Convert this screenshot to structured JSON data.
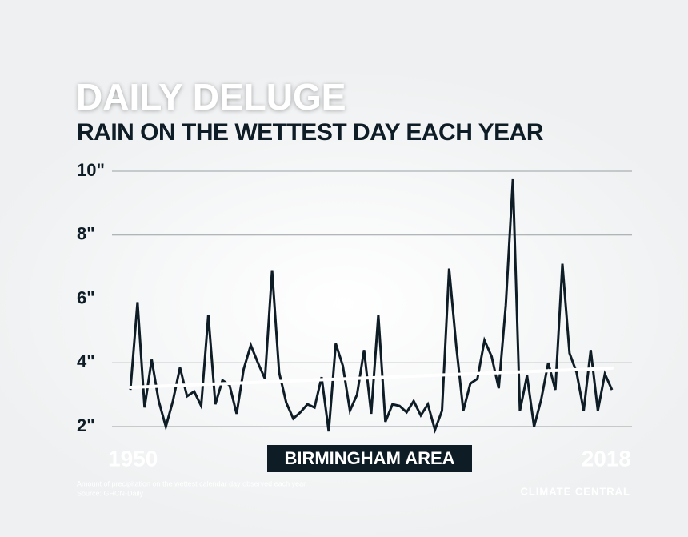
{
  "chart_data": {
    "type": "line",
    "title": "DAILY DELUGE",
    "subtitle": "RAIN ON THE WETTEST DAY EACH YEAR",
    "label": "BIRMINGHAM AREA",
    "footnote": [
      "Amount of precipitation on the wettest calendar day observed each year",
      "Source: GHCN-Daily"
    ],
    "logo": "CLIMATE CENTRAL",
    "x": [
      1950,
      1951,
      1952,
      1953,
      1954,
      1955,
      1956,
      1957,
      1958,
      1959,
      1960,
      1961,
      1962,
      1963,
      1964,
      1965,
      1966,
      1967,
      1968,
      1969,
      1970,
      1971,
      1972,
      1973,
      1974,
      1975,
      1976,
      1977,
      1978,
      1979,
      1980,
      1981,
      1982,
      1983,
      1984,
      1985,
      1986,
      1987,
      1988,
      1989,
      1990,
      1991,
      1992,
      1993,
      1994,
      1995,
      1996,
      1997,
      1998,
      1999,
      2000,
      2001,
      2002,
      2003,
      2004,
      2005,
      2006,
      2007,
      2008,
      2009,
      2010,
      2011,
      2012,
      2013,
      2014,
      2015,
      2016,
      2017,
      2018
    ],
    "series": [
      {
        "color": "#0e1c26",
        "values": [
          3.15,
          5.9,
          2.6,
          4.1,
          2.8,
          2.0,
          2.8,
          3.85,
          2.95,
          3.1,
          2.65,
          5.5,
          2.7,
          3.45,
          3.3,
          2.4,
          3.8,
          4.55,
          4.0,
          3.5,
          6.9,
          3.7,
          2.75,
          2.25,
          2.45,
          2.7,
          2.6,
          3.55,
          1.85,
          4.6,
          3.9,
          2.5,
          3.0,
          4.4,
          2.4,
          5.5,
          2.15,
          2.7,
          2.65,
          2.45,
          2.8,
          2.35,
          2.7,
          1.9,
          2.5,
          6.95,
          4.55,
          2.5,
          3.35,
          3.5,
          4.7,
          4.2,
          3.2,
          5.8,
          9.75,
          2.5,
          3.6,
          2.0,
          2.85,
          4.0,
          3.15,
          7.1,
          4.3,
          3.7,
          2.5,
          4.4,
          2.5,
          3.65,
          3.15
        ]
      }
    ],
    "trend": {
      "color": "#ffffff",
      "x": [
        1950,
        2018
      ],
      "values": [
        3.23,
        3.83
      ]
    },
    "xlim": [
      1950,
      2018
    ],
    "xticks": [
      1950,
      2018
    ],
    "ylim": [
      2,
      10
    ],
    "yticks": [
      {
        "value": 2,
        "label": "2\""
      },
      {
        "value": 4,
        "label": "4\""
      },
      {
        "value": 6,
        "label": "6\""
      },
      {
        "value": 8,
        "label": "8\""
      },
      {
        "value": 10,
        "label": "10\""
      }
    ],
    "grid": true
  }
}
